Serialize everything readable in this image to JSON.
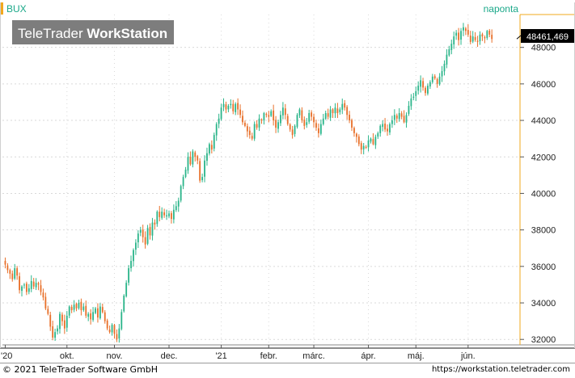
{
  "header": {
    "symbol": "BUX",
    "brand_light": "TeleTrader ",
    "brand_bold": "WorkStation",
    "interval": "naponta",
    "last_price": "48461,469"
  },
  "footer": {
    "copyright": "© 2021 TeleTrader Software GmbH",
    "url": "https://workstation.teletrader.com"
  },
  "colors": {
    "up": "#2bb58a",
    "down": "#e8702a",
    "grid": "#d9d9d9",
    "axis": "#f2a81d",
    "accent": "#1aa889",
    "badge": "#000000",
    "logo_bg": "#7d7d7d"
  },
  "chart_data": {
    "type": "candlestick",
    "series_name": "BUX",
    "ylim": [
      31700,
      49800
    ],
    "y_ticks": [
      32000,
      34000,
      36000,
      38000,
      40000,
      42000,
      44000,
      46000,
      48000
    ],
    "y_tick_labels": [
      "32000",
      "34000",
      "36000",
      "38000",
      "40000",
      "42000",
      "44000",
      "46000",
      "48000"
    ],
    "x_tick_labels": [
      "'20",
      "okt.",
      "nov.",
      "dec.",
      "'21",
      "febr.",
      "márc.",
      "ápr.",
      "máj.",
      "jún."
    ],
    "x_tick_days": [
      0,
      26,
      46,
      69,
      91,
      111,
      130,
      153,
      173,
      195
    ],
    "n_days": 216,
    "grid": true,
    "closes": [
      36100,
      35800,
      35600,
      35300,
      35900,
      35500,
      34700,
      34900,
      35000,
      34600,
      34800,
      35200,
      34900,
      35100,
      35000,
      34600,
      34300,
      33700,
      33400,
      32700,
      32100,
      32400,
      32600,
      33400,
      33000,
      32600,
      33300,
      33800,
      33600,
      33900,
      33700,
      34000,
      33600,
      33800,
      33300,
      33400,
      33100,
      33500,
      33700,
      33200,
      33800,
      33500,
      33000,
      32600,
      32400,
      32800,
      32300,
      32000,
      32600,
      33500,
      34400,
      35100,
      35900,
      36300,
      36900,
      37300,
      37800,
      38000,
      37600,
      37200,
      38100,
      37700,
      38400,
      38300,
      39000,
      38700,
      39000,
      38800,
      38800,
      38900,
      38600,
      39100,
      39300,
      39600,
      40400,
      40900,
      41300,
      42000,
      41600,
      42300,
      42000,
      41800,
      40700,
      40900,
      41800,
      42200,
      42700,
      42400,
      43200,
      43800,
      44100,
      44700,
      44900,
      44600,
      44800,
      44900,
      44500,
      44900,
      44600,
      44300,
      43900,
      43700,
      43400,
      43200,
      43000,
      43800,
      43600,
      44100,
      44000,
      44400,
      44300,
      44200,
      44500,
      44000,
      43600,
      43900,
      44300,
      44700,
      44300,
      43800,
      43500,
      43200,
      43700,
      44300,
      44600,
      44000,
      43700,
      43900,
      44400,
      44200,
      43900,
      43600,
      43300,
      43800,
      44100,
      44400,
      44200,
      44600,
      44400,
      44700,
      44400,
      44600,
      44900,
      44700,
      44300,
      44000,
      43600,
      43300,
      43100,
      42700,
      42400,
      42600,
      42500,
      42900,
      43000,
      42700,
      43100,
      43300,
      43700,
      43800,
      43500,
      43400,
      43800,
      44000,
      44300,
      44100,
      44400,
      44200,
      43900,
      44300,
      44800,
      45200,
      45300,
      45600,
      45900,
      46200,
      45800,
      45500,
      45900,
      46100,
      46400,
      46300,
      46000,
      46400,
      46700,
      47100,
      47600,
      47900,
      48200,
      48600,
      48800,
      48400,
      48900,
      49100,
      48900,
      48700,
      48300,
      48600,
      48400,
      48300,
      48700,
      48600,
      48500,
      48900,
      48700,
      48461
    ]
  }
}
